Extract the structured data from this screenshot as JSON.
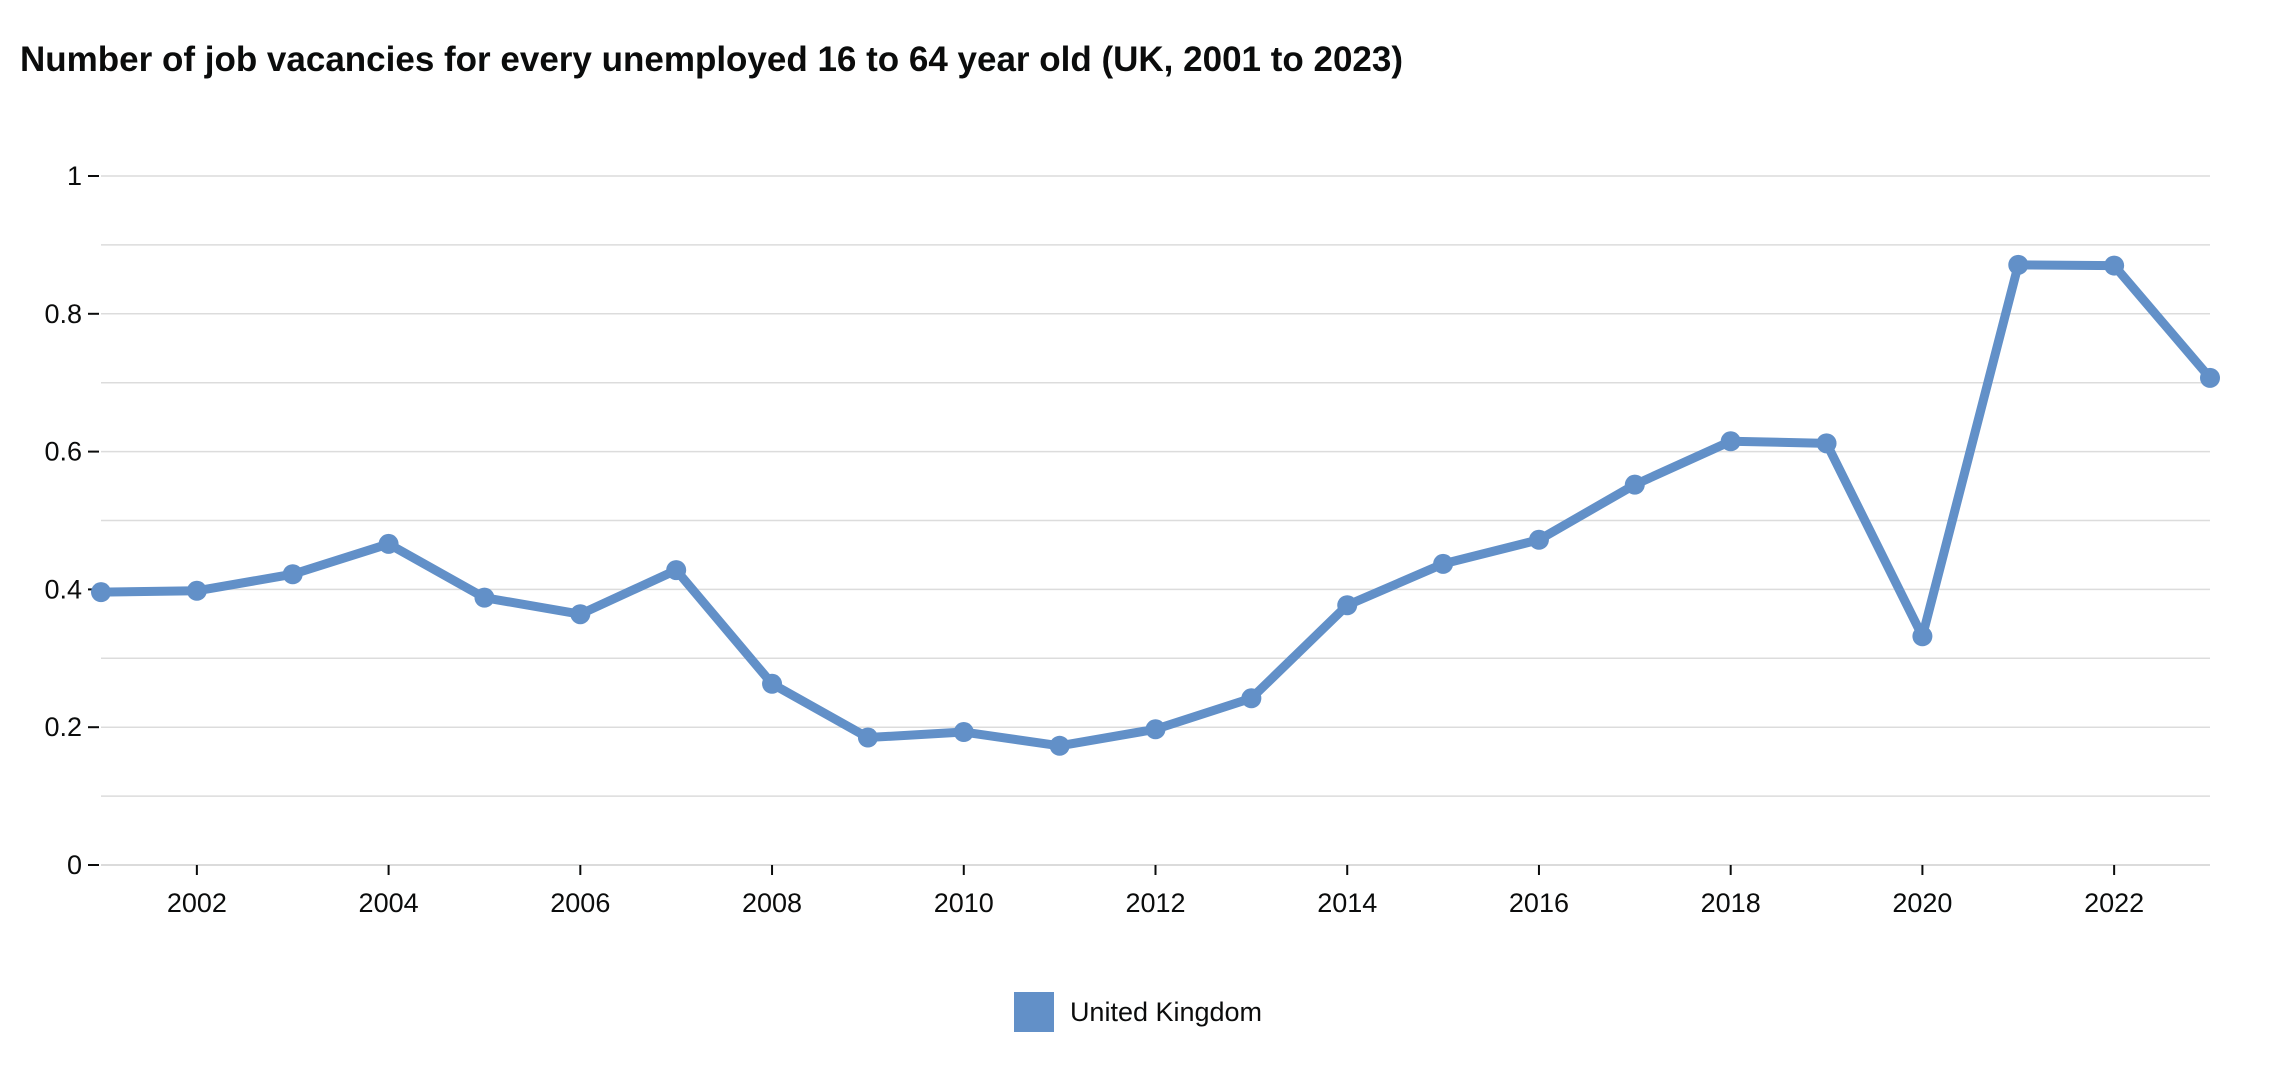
{
  "chart_data": {
    "type": "line",
    "title": "Number of job vacancies for every unemployed 16 to 64 year old (UK, 2001 to 2023)",
    "xlabel": "",
    "ylabel": "",
    "x": [
      2001,
      2002,
      2003,
      2004,
      2005,
      2006,
      2007,
      2008,
      2009,
      2010,
      2011,
      2012,
      2013,
      2014,
      2015,
      2016,
      2017,
      2018,
      2019,
      2020,
      2021,
      2022,
      2023
    ],
    "series": [
      {
        "name": "United Kingdom",
        "color": "#6290c8",
        "values": [
          0.396,
          0.398,
          0.422,
          0.466,
          0.388,
          0.364,
          0.428,
          0.263,
          0.185,
          0.193,
          0.173,
          0.197,
          0.242,
          0.377,
          0.437,
          0.472,
          0.552,
          0.615,
          0.612,
          0.332,
          0.871,
          0.87,
          0.707
        ]
      }
    ],
    "xlim": [
      2001,
      2023
    ],
    "ylim": [
      0,
      1
    ],
    "x_ticks": [
      "2002",
      "2004",
      "2006",
      "2008",
      "2010",
      "2012",
      "2014",
      "2016",
      "2018",
      "2020",
      "2022"
    ],
    "y_ticks": [
      "0",
      "0.2",
      "0.4",
      "0.6",
      "0.8",
      "1"
    ],
    "y_gridlines": [
      0.1,
      0.2,
      0.3,
      0.4,
      0.5,
      0.6,
      0.7,
      0.8,
      0.9,
      1.0
    ],
    "grid": true,
    "legend_position": "bottom-center"
  },
  "legend": {
    "label": "United Kingdom",
    "color": "#6290c8"
  }
}
